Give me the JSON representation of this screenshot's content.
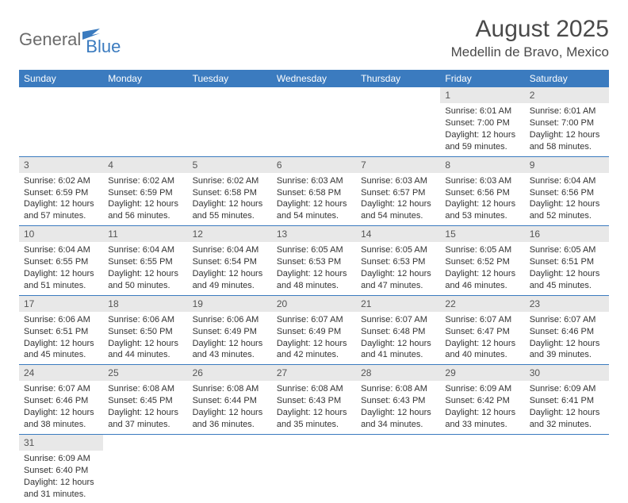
{
  "colors": {
    "header_bg": "#3b7bbf",
    "header_fg": "#ffffff",
    "daynum_bg": "#e8e8e8",
    "row_border": "#3b7bbf",
    "text": "#333333",
    "title": "#4a4a4a",
    "logo_gray": "#6b6b6b",
    "logo_blue": "#3b7bbf"
  },
  "logo": {
    "part1": "General",
    "part2": "Blue"
  },
  "title": {
    "month": "August 2025",
    "location": "Medellin de Bravo, Mexico"
  },
  "weekdays": [
    "Sunday",
    "Monday",
    "Tuesday",
    "Wednesday",
    "Thursday",
    "Friday",
    "Saturday"
  ],
  "rows": [
    [
      {
        "empty": true
      },
      {
        "empty": true
      },
      {
        "empty": true
      },
      {
        "empty": true
      },
      {
        "empty": true
      },
      {
        "n": "1",
        "sunrise": "Sunrise: 6:01 AM",
        "sunset": "Sunset: 7:00 PM",
        "d1": "Daylight: 12 hours",
        "d2": "and 59 minutes."
      },
      {
        "n": "2",
        "sunrise": "Sunrise: 6:01 AM",
        "sunset": "Sunset: 7:00 PM",
        "d1": "Daylight: 12 hours",
        "d2": "and 58 minutes."
      }
    ],
    [
      {
        "n": "3",
        "sunrise": "Sunrise: 6:02 AM",
        "sunset": "Sunset: 6:59 PM",
        "d1": "Daylight: 12 hours",
        "d2": "and 57 minutes."
      },
      {
        "n": "4",
        "sunrise": "Sunrise: 6:02 AM",
        "sunset": "Sunset: 6:59 PM",
        "d1": "Daylight: 12 hours",
        "d2": "and 56 minutes."
      },
      {
        "n": "5",
        "sunrise": "Sunrise: 6:02 AM",
        "sunset": "Sunset: 6:58 PM",
        "d1": "Daylight: 12 hours",
        "d2": "and 55 minutes."
      },
      {
        "n": "6",
        "sunrise": "Sunrise: 6:03 AM",
        "sunset": "Sunset: 6:58 PM",
        "d1": "Daylight: 12 hours",
        "d2": "and 54 minutes."
      },
      {
        "n": "7",
        "sunrise": "Sunrise: 6:03 AM",
        "sunset": "Sunset: 6:57 PM",
        "d1": "Daylight: 12 hours",
        "d2": "and 54 minutes."
      },
      {
        "n": "8",
        "sunrise": "Sunrise: 6:03 AM",
        "sunset": "Sunset: 6:56 PM",
        "d1": "Daylight: 12 hours",
        "d2": "and 53 minutes."
      },
      {
        "n": "9",
        "sunrise": "Sunrise: 6:04 AM",
        "sunset": "Sunset: 6:56 PM",
        "d1": "Daylight: 12 hours",
        "d2": "and 52 minutes."
      }
    ],
    [
      {
        "n": "10",
        "sunrise": "Sunrise: 6:04 AM",
        "sunset": "Sunset: 6:55 PM",
        "d1": "Daylight: 12 hours",
        "d2": "and 51 minutes."
      },
      {
        "n": "11",
        "sunrise": "Sunrise: 6:04 AM",
        "sunset": "Sunset: 6:55 PM",
        "d1": "Daylight: 12 hours",
        "d2": "and 50 minutes."
      },
      {
        "n": "12",
        "sunrise": "Sunrise: 6:04 AM",
        "sunset": "Sunset: 6:54 PM",
        "d1": "Daylight: 12 hours",
        "d2": "and 49 minutes."
      },
      {
        "n": "13",
        "sunrise": "Sunrise: 6:05 AM",
        "sunset": "Sunset: 6:53 PM",
        "d1": "Daylight: 12 hours",
        "d2": "and 48 minutes."
      },
      {
        "n": "14",
        "sunrise": "Sunrise: 6:05 AM",
        "sunset": "Sunset: 6:53 PM",
        "d1": "Daylight: 12 hours",
        "d2": "and 47 minutes."
      },
      {
        "n": "15",
        "sunrise": "Sunrise: 6:05 AM",
        "sunset": "Sunset: 6:52 PM",
        "d1": "Daylight: 12 hours",
        "d2": "and 46 minutes."
      },
      {
        "n": "16",
        "sunrise": "Sunrise: 6:05 AM",
        "sunset": "Sunset: 6:51 PM",
        "d1": "Daylight: 12 hours",
        "d2": "and 45 minutes."
      }
    ],
    [
      {
        "n": "17",
        "sunrise": "Sunrise: 6:06 AM",
        "sunset": "Sunset: 6:51 PM",
        "d1": "Daylight: 12 hours",
        "d2": "and 45 minutes."
      },
      {
        "n": "18",
        "sunrise": "Sunrise: 6:06 AM",
        "sunset": "Sunset: 6:50 PM",
        "d1": "Daylight: 12 hours",
        "d2": "and 44 minutes."
      },
      {
        "n": "19",
        "sunrise": "Sunrise: 6:06 AM",
        "sunset": "Sunset: 6:49 PM",
        "d1": "Daylight: 12 hours",
        "d2": "and 43 minutes."
      },
      {
        "n": "20",
        "sunrise": "Sunrise: 6:07 AM",
        "sunset": "Sunset: 6:49 PM",
        "d1": "Daylight: 12 hours",
        "d2": "and 42 minutes."
      },
      {
        "n": "21",
        "sunrise": "Sunrise: 6:07 AM",
        "sunset": "Sunset: 6:48 PM",
        "d1": "Daylight: 12 hours",
        "d2": "and 41 minutes."
      },
      {
        "n": "22",
        "sunrise": "Sunrise: 6:07 AM",
        "sunset": "Sunset: 6:47 PM",
        "d1": "Daylight: 12 hours",
        "d2": "and 40 minutes."
      },
      {
        "n": "23",
        "sunrise": "Sunrise: 6:07 AM",
        "sunset": "Sunset: 6:46 PM",
        "d1": "Daylight: 12 hours",
        "d2": "and 39 minutes."
      }
    ],
    [
      {
        "n": "24",
        "sunrise": "Sunrise: 6:07 AM",
        "sunset": "Sunset: 6:46 PM",
        "d1": "Daylight: 12 hours",
        "d2": "and 38 minutes."
      },
      {
        "n": "25",
        "sunrise": "Sunrise: 6:08 AM",
        "sunset": "Sunset: 6:45 PM",
        "d1": "Daylight: 12 hours",
        "d2": "and 37 minutes."
      },
      {
        "n": "26",
        "sunrise": "Sunrise: 6:08 AM",
        "sunset": "Sunset: 6:44 PM",
        "d1": "Daylight: 12 hours",
        "d2": "and 36 minutes."
      },
      {
        "n": "27",
        "sunrise": "Sunrise: 6:08 AM",
        "sunset": "Sunset: 6:43 PM",
        "d1": "Daylight: 12 hours",
        "d2": "and 35 minutes."
      },
      {
        "n": "28",
        "sunrise": "Sunrise: 6:08 AM",
        "sunset": "Sunset: 6:43 PM",
        "d1": "Daylight: 12 hours",
        "d2": "and 34 minutes."
      },
      {
        "n": "29",
        "sunrise": "Sunrise: 6:09 AM",
        "sunset": "Sunset: 6:42 PM",
        "d1": "Daylight: 12 hours",
        "d2": "and 33 minutes."
      },
      {
        "n": "30",
        "sunrise": "Sunrise: 6:09 AM",
        "sunset": "Sunset: 6:41 PM",
        "d1": "Daylight: 12 hours",
        "d2": "and 32 minutes."
      }
    ],
    [
      {
        "n": "31",
        "sunrise": "Sunrise: 6:09 AM",
        "sunset": "Sunset: 6:40 PM",
        "d1": "Daylight: 12 hours",
        "d2": "and 31 minutes."
      },
      {
        "empty": true
      },
      {
        "empty": true
      },
      {
        "empty": true
      },
      {
        "empty": true
      },
      {
        "empty": true
      },
      {
        "empty": true
      }
    ]
  ]
}
